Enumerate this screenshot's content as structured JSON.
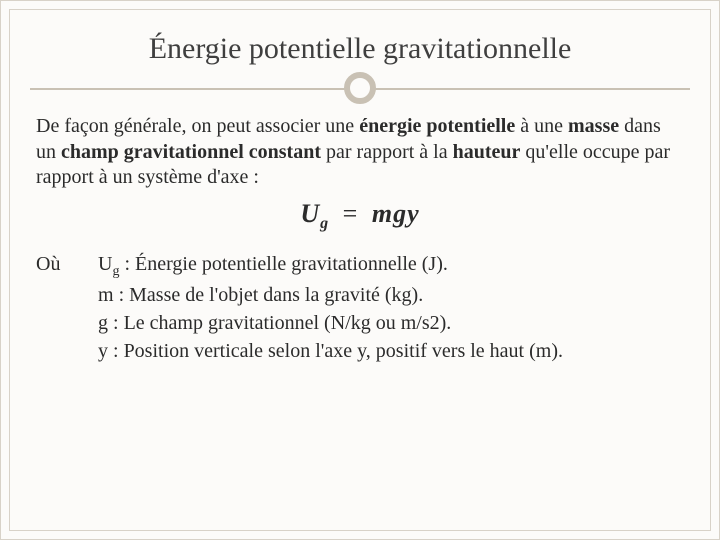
{
  "colors": {
    "background": "#fcfbf9",
    "frame_border": "#d8d2c8",
    "divider": "#c9c1b4",
    "title_text": "#3f3f3f",
    "body_text": "#2b2b2b"
  },
  "typography": {
    "title_fontsize_pt": 30,
    "body_fontsize_pt": 20,
    "formula_fontsize_pt": 26,
    "font_family": "Georgia, serif"
  },
  "title": "Énergie potentielle gravitationnelle",
  "paragraph": {
    "t1": "De façon générale, on peut associer une ",
    "b1": "énergie potentielle",
    "t2": " à une ",
    "b2": "masse",
    "t3": " dans un ",
    "b3": "champ gravitationnel constant",
    "t4": " par rapport à la ",
    "b4": "hauteur",
    "t5": " qu'elle occupe par rapport à un système d'axe :"
  },
  "formula": {
    "lhs_sym": "U",
    "lhs_sub": "g",
    "eq": "=",
    "rhs": "mgy"
  },
  "defs_label": "Où",
  "defs": [
    {
      "sym": "U",
      "sub": "g",
      "sep": " : ",
      "desc": "Énergie potentielle gravitationnelle (J)."
    },
    {
      "sym": "m",
      "sub": "",
      "sep": " : ",
      "desc": "Masse de l'objet dans la gravité (kg)."
    },
    {
      "sym": "g",
      "sub": "",
      "sep": " : ",
      "desc": "Le champ gravitationnel (N/kg ou m/s2)."
    },
    {
      "sym": "y",
      "sub": "",
      "sep": " : ",
      "desc": "Position verticale selon l'axe y, positif vers le haut (m)."
    }
  ]
}
